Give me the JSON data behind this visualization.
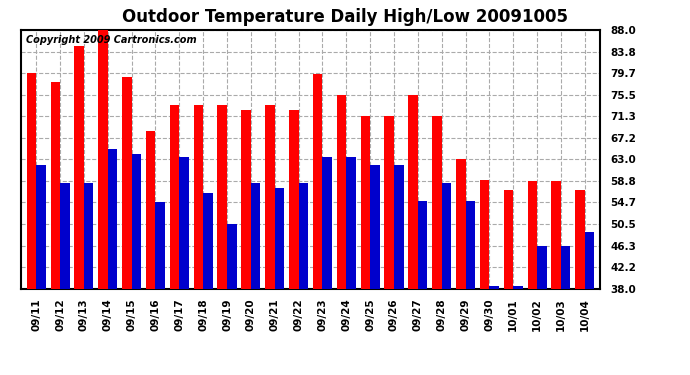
{
  "title": "Outdoor Temperature Daily High/Low 20091005",
  "copyright": "Copyright 2009 Cartronics.com",
  "categories": [
    "09/11",
    "09/12",
    "09/13",
    "09/14",
    "09/15",
    "09/16",
    "09/17",
    "09/18",
    "09/19",
    "09/20",
    "09/21",
    "09/22",
    "09/23",
    "09/24",
    "09/25",
    "09/26",
    "09/27",
    "09/28",
    "09/29",
    "09/30",
    "10/01",
    "10/02",
    "10/03",
    "10/04"
  ],
  "highs": [
    79.7,
    78.0,
    85.0,
    88.0,
    79.0,
    68.5,
    73.5,
    73.5,
    73.5,
    72.5,
    73.5,
    72.5,
    79.5,
    75.5,
    71.3,
    71.3,
    75.5,
    71.3,
    63.0,
    59.0,
    57.0,
    58.8,
    58.8,
    57.0
  ],
  "lows": [
    62.0,
    58.5,
    58.5,
    65.0,
    64.0,
    54.7,
    63.5,
    56.5,
    50.5,
    58.5,
    57.5,
    58.5,
    63.5,
    63.5,
    62.0,
    62.0,
    55.0,
    58.5,
    55.0,
    38.5,
    38.5,
    46.3,
    46.3,
    49.0
  ],
  "yticks": [
    38.0,
    42.2,
    46.3,
    50.5,
    54.7,
    58.8,
    63.0,
    67.2,
    71.3,
    75.5,
    79.7,
    83.8,
    88.0
  ],
  "ymin": 38.0,
  "ymax": 88.0,
  "bar_width": 0.4,
  "high_color": "#ff0000",
  "low_color": "#0000cc",
  "bg_color": "#ffffff",
  "grid_color": "#aaaaaa",
  "title_fontsize": 12,
  "tick_fontsize": 7.5,
  "copyright_fontsize": 7
}
